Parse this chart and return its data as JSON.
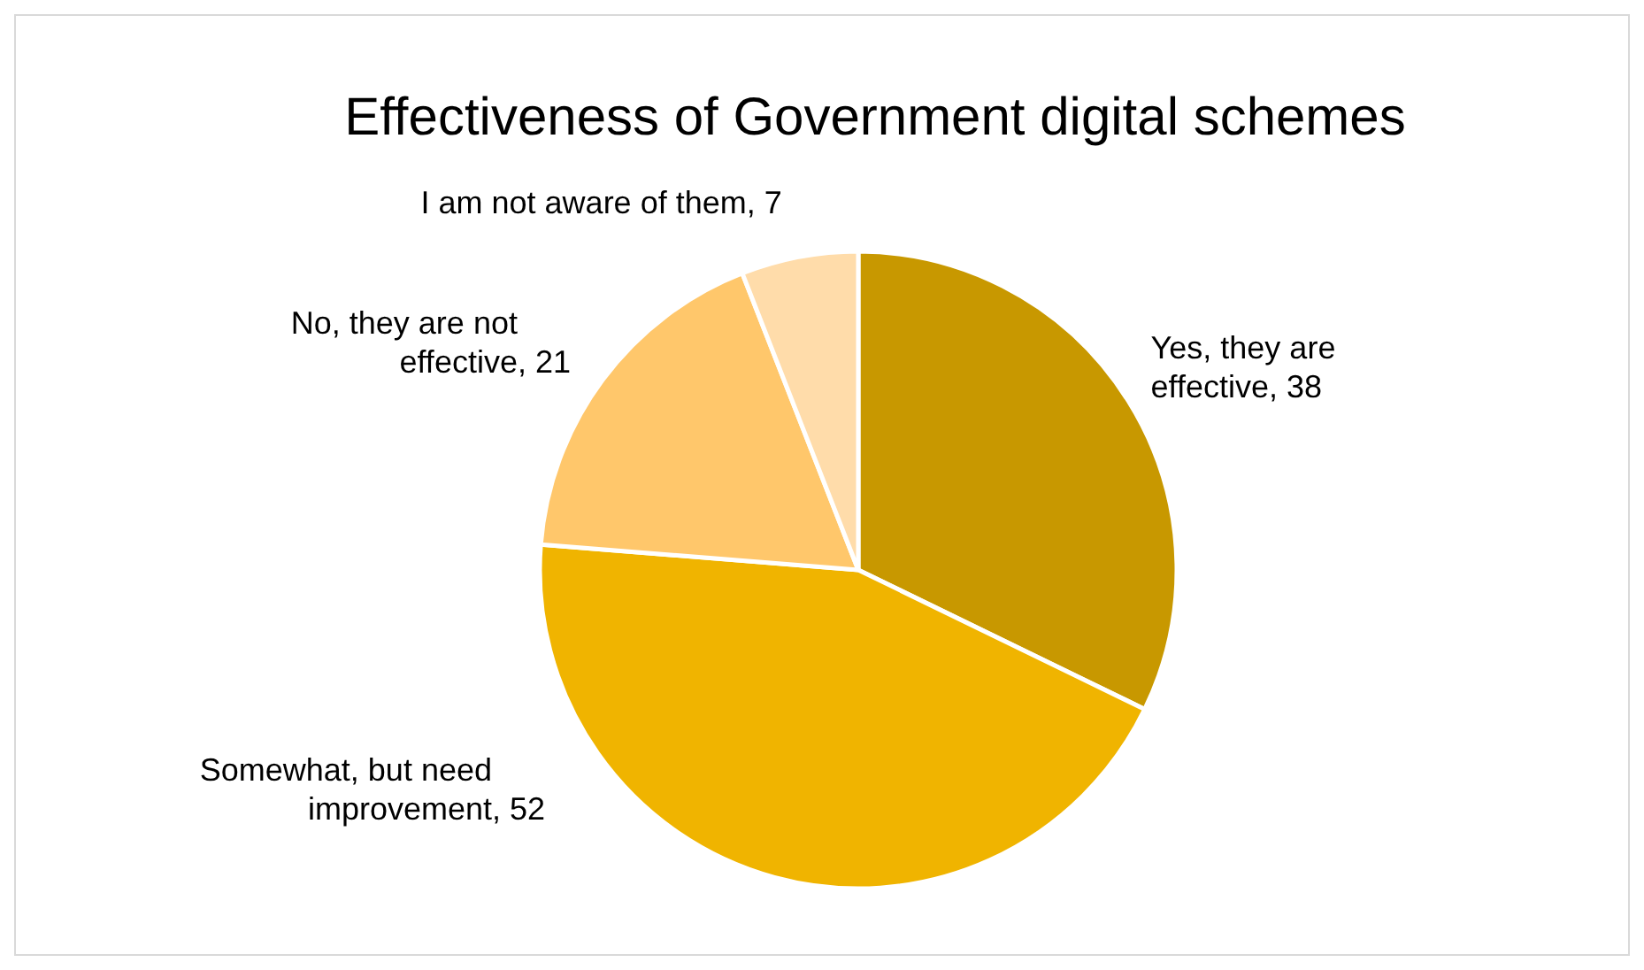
{
  "chart_data": {
    "type": "pie",
    "title": "Effectiveness of Government digital schemes",
    "categories": [
      "Yes, they are effective",
      "Somewhat, but need improvement",
      "No, they are not effective",
      "I am not aware of them"
    ],
    "values": [
      38,
      52,
      21,
      7
    ],
    "value_labels": [
      ", 38",
      ", 52",
      ", 21",
      ", 7"
    ],
    "colors": [
      "#c89800",
      "#f0b400",
      "#ffc76b",
      "#ffdcaa"
    ],
    "legend": false
  }
}
